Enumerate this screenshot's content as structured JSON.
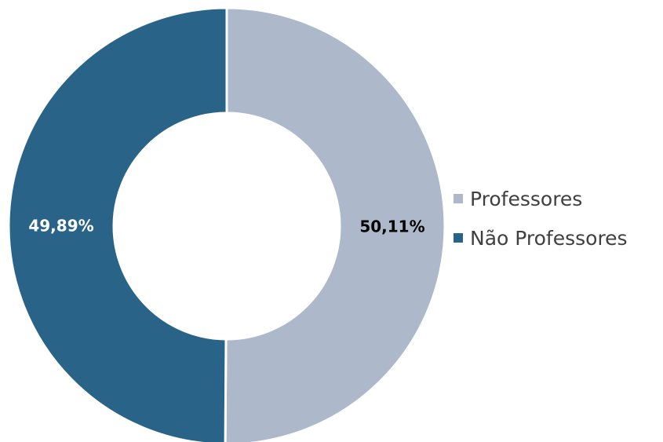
{
  "chart_data": {
    "type": "pie",
    "donut": true,
    "title": "",
    "slices": [
      {
        "name": "Professores",
        "value": 50.11,
        "label": "50,11%",
        "color": "#adb9cb",
        "label_color": "#000000"
      },
      {
        "name": "Não Professores",
        "value": 49.89,
        "label": "49,89%",
        "color": "#2a6388",
        "label_color": "#ffffff"
      }
    ],
    "legend": {
      "placement": "right",
      "items": [
        {
          "label": "Professores",
          "color": "#adb9cb"
        },
        {
          "label": "Não Professores",
          "color": "#2a6388"
        }
      ]
    }
  }
}
